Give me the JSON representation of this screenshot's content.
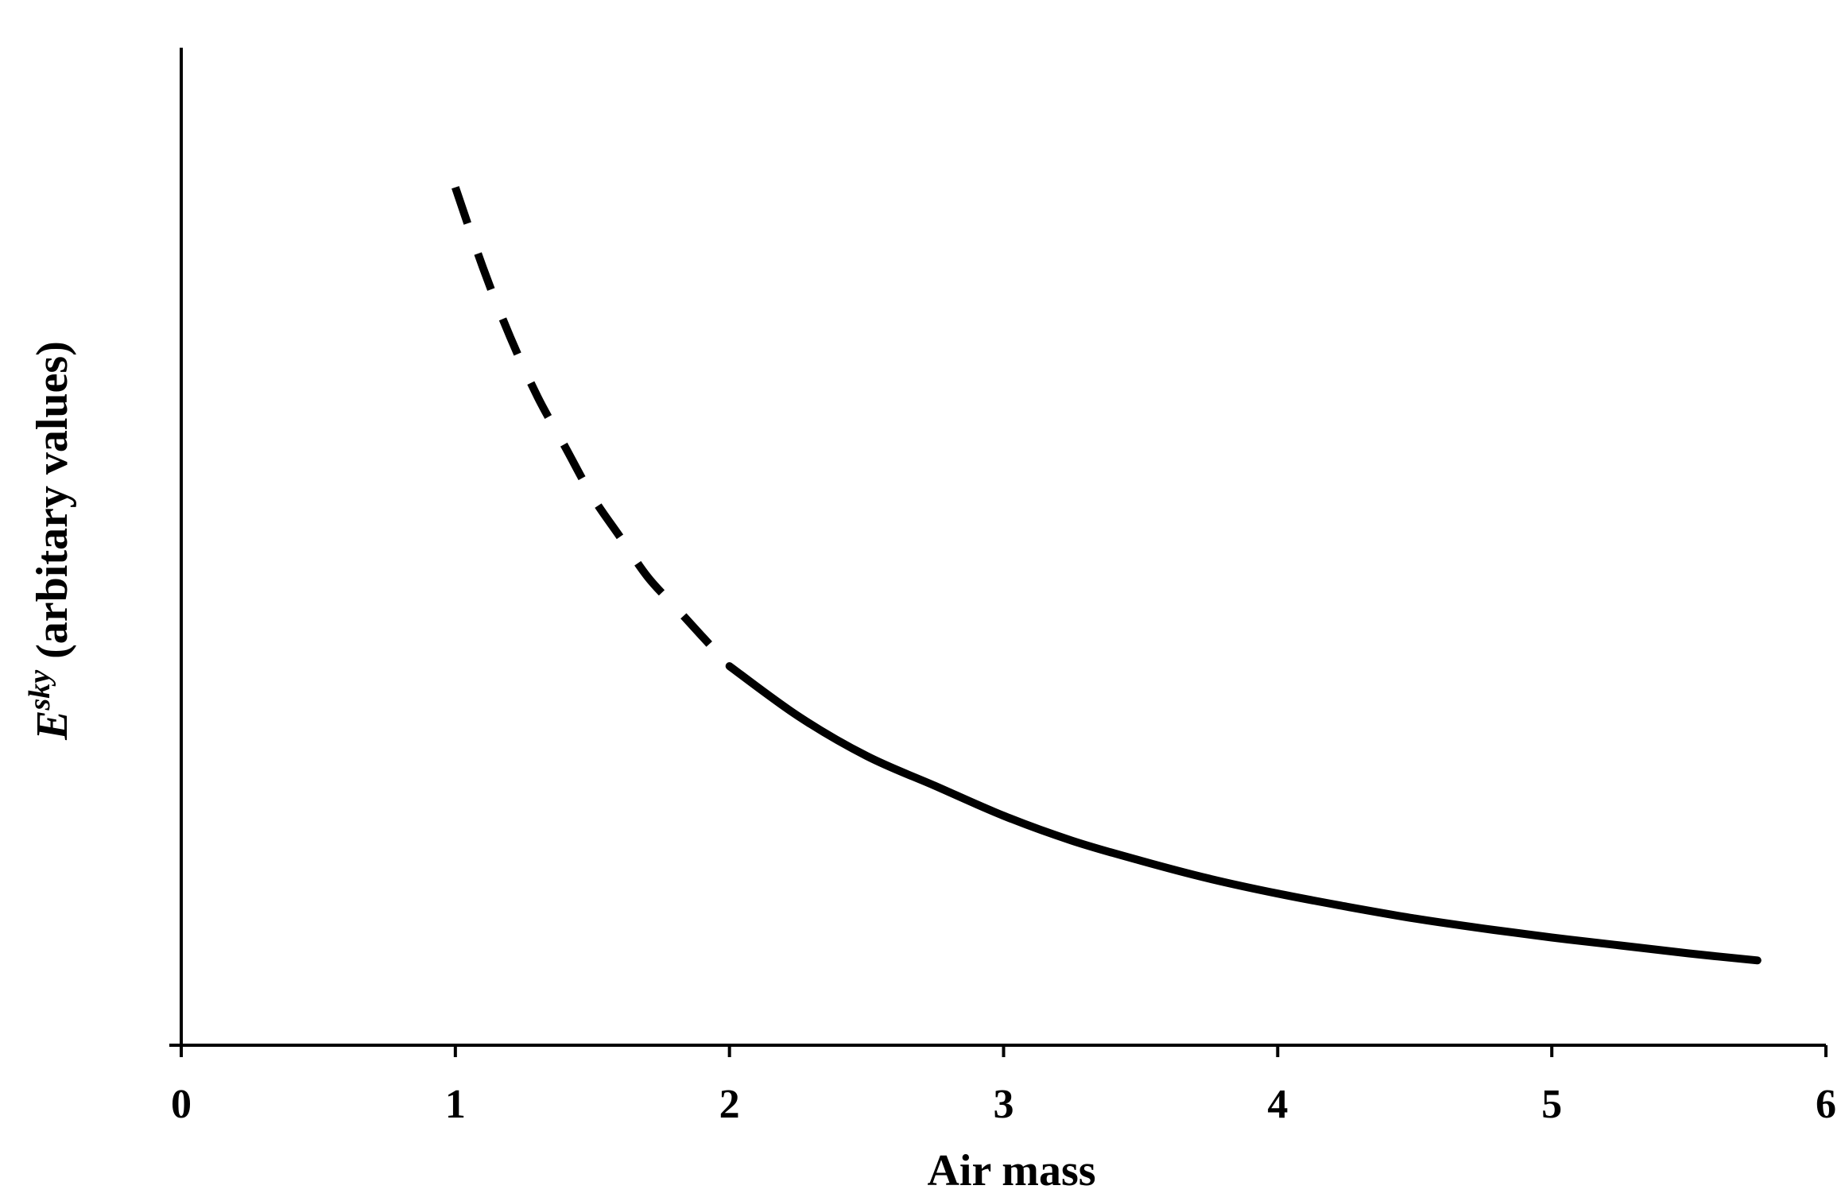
{
  "chart_data": {
    "type": "line",
    "title": "",
    "xlabel": "Air mass",
    "ylabel": {
      "symbol": "E",
      "superscript": "sky",
      "rest": " (arbitary values)"
    },
    "xlim": [
      0,
      6
    ],
    "ylim": [
      0,
      1
    ],
    "x_ticks": [
      "0",
      "1",
      "2",
      "3",
      "4",
      "5",
      "6"
    ],
    "y_ticks": [],
    "grid": false,
    "legend": "none",
    "line_color": "#000000",
    "series": [
      {
        "style": "dashed",
        "x": [
          1.0,
          1.1,
          1.2,
          1.3,
          1.4,
          1.5,
          1.6,
          1.7,
          1.8,
          1.9,
          2.0
        ],
        "y": [
          0.86,
          0.78,
          0.71,
          0.65,
          0.6,
          0.55,
          0.51,
          0.47,
          0.44,
          0.41,
          0.38
        ]
      },
      {
        "style": "solid",
        "x": [
          2.0,
          2.25,
          2.5,
          2.75,
          3.0,
          3.25,
          3.5,
          3.75,
          4.0,
          4.25,
          4.5,
          4.75,
          5.0,
          5.25,
          5.5,
          5.75
        ],
        "y": [
          0.38,
          0.33,
          0.29,
          0.26,
          0.23,
          0.205,
          0.185,
          0.167,
          0.152,
          0.139,
          0.127,
          0.117,
          0.108,
          0.1,
          0.092,
          0.085
        ]
      }
    ]
  }
}
